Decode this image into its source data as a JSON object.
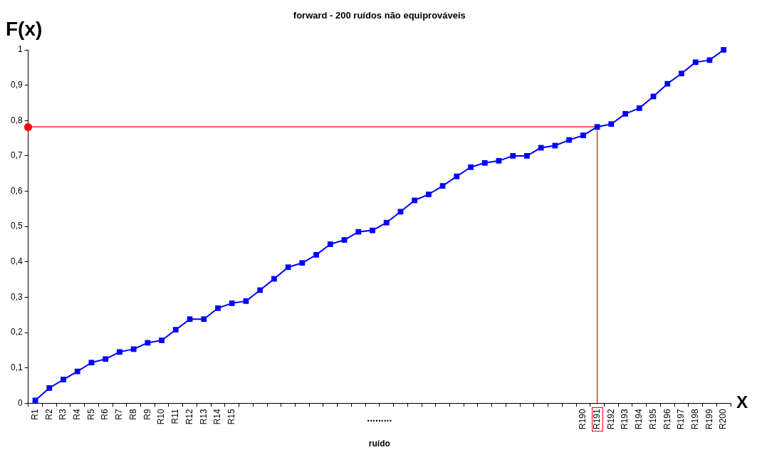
{
  "chart_data": {
    "type": "line",
    "title": "forward - 200 ruídos não equiprováveis",
    "xlabel": "ruído",
    "ylabel": "F(x)",
    "annotations": [
      "X",
      "........."
    ],
    "categories": [
      "R1",
      "R2",
      "R3",
      "R4",
      "R5",
      "R6",
      "R7",
      "R8",
      "R9",
      "R10",
      "R11",
      "R12",
      "R13",
      "R14",
      "R15",
      null,
      null,
      null,
      null,
      null,
      null,
      null,
      null,
      null,
      null,
      null,
      null,
      null,
      null,
      null,
      null,
      null,
      null,
      null,
      null,
      null,
      null,
      null,
      null,
      "R190",
      "R191",
      "R192",
      "R193",
      "R194",
      "R195",
      "R196",
      "R197",
      "R198",
      "R199",
      "R200"
    ],
    "series": [
      {
        "color": "#0000ff",
        "values": [
          0.008,
          0.043,
          0.067,
          0.09,
          0.115,
          0.125,
          0.145,
          0.153,
          0.171,
          0.178,
          0.208,
          0.238,
          0.238,
          0.269,
          0.283,
          0.289,
          0.32,
          0.352,
          0.385,
          0.397,
          0.42,
          0.45,
          0.462,
          0.485,
          0.489,
          0.511,
          0.542,
          0.574,
          0.591,
          0.615,
          0.642,
          0.668,
          0.68,
          0.686,
          0.7,
          0.7,
          0.723,
          0.729,
          0.745,
          0.758,
          0.782,
          0.79,
          0.819,
          0.835,
          0.868,
          0.904,
          0.933,
          0.965,
          0.971,
          1.0
        ]
      }
    ],
    "ylim": [
      0,
      1
    ],
    "yticks": [
      0,
      {
        "value": 0.1,
        "label": "0,1"
      },
      {
        "value": 0.2,
        "label": "0,2"
      },
      {
        "value": 0.3,
        "label": "0,3"
      },
      {
        "value": 0.4,
        "label": "0,4"
      },
      {
        "value": 0.5,
        "label": "0,5"
      },
      {
        "value": 0.6,
        "label": "0,6"
      },
      {
        "value": 0.7,
        "label": "0,7"
      },
      {
        "value": 0.8,
        "label": "0,8"
      },
      {
        "value": 0.9,
        "label": "0,9"
      },
      1
    ],
    "ref_lines": [
      {
        "axis": "y",
        "value": 0.782,
        "color": "#ff0000"
      },
      {
        "axis": "x",
        "value": "R191",
        "color": "#ff0000"
      }
    ],
    "grid": false,
    "legend": false,
    "marker": "square",
    "line_style": "solid"
  }
}
